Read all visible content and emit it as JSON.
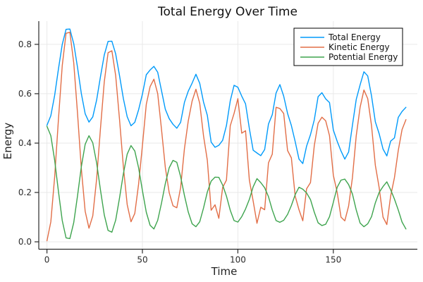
{
  "figure": {
    "background": "#ffffff",
    "axis_color": "#2b2b2b",
    "grid_color": "#e9e9e9",
    "tick_label_color": "#2b2b2b"
  },
  "chart_data": {
    "type": "line",
    "title": "Total Energy Over Time",
    "xlabel": "Time",
    "ylabel": "Energy",
    "xlim": [
      -4.3,
      194
    ],
    "ylim": [
      -0.03,
      0.894
    ],
    "grid": true,
    "legend_position": "top-right",
    "legend_border_color": "#000000",
    "legend_background": "#ffffff",
    "xtick_values": [
      0,
      50,
      100,
      150
    ],
    "xtick_labels": [
      "0",
      "50",
      "100",
      "150"
    ],
    "ytick_values": [
      0.0,
      0.2,
      0.4,
      0.6,
      0.8
    ],
    "ytick_labels": [
      "0.0",
      "0.2",
      "0.4",
      "0.6",
      "0.8"
    ],
    "x": [
      0,
      2,
      4,
      6,
      8,
      10,
      12,
      14,
      16,
      18,
      20,
      22,
      24,
      26,
      28,
      30,
      32,
      34,
      36,
      38,
      40,
      42,
      44,
      46,
      48,
      50,
      52,
      54,
      56,
      58,
      60,
      62,
      64,
      66,
      68,
      70,
      72,
      74,
      76,
      78,
      80,
      82,
      84,
      86,
      88,
      90,
      92,
      94,
      96,
      98,
      100,
      102,
      104,
      106,
      108,
      110,
      112,
      114,
      116,
      118,
      120,
      122,
      124,
      126,
      128,
      130,
      132,
      134,
      136,
      138,
      140,
      142,
      144,
      146,
      148,
      150,
      152,
      154,
      156,
      158,
      160,
      162,
      164,
      166,
      168,
      170,
      172,
      174,
      176,
      178,
      180,
      182,
      184,
      186,
      188
    ],
    "series": [
      {
        "name": "Total Energy",
        "color": "#009AFA",
        "values": [
          0.472,
          0.511,
          0.593,
          0.7,
          0.8,
          0.861,
          0.862,
          0.803,
          0.706,
          0.6,
          0.519,
          0.485,
          0.506,
          0.575,
          0.669,
          0.757,
          0.812,
          0.813,
          0.761,
          0.674,
          0.58,
          0.507,
          0.47,
          0.484,
          0.535,
          0.598,
          0.677,
          0.696,
          0.711,
          0.687,
          0.612,
          0.537,
          0.499,
          0.476,
          0.46,
          0.484,
          0.565,
          0.61,
          0.643,
          0.679,
          0.642,
          0.566,
          0.512,
          0.404,
          0.383,
          0.391,
          0.411,
          0.471,
          0.571,
          0.634,
          0.626,
          0.59,
          0.559,
          0.459,
          0.371,
          0.36,
          0.349,
          0.374,
          0.477,
          0.515,
          0.603,
          0.637,
          0.59,
          0.52,
          0.471,
          0.406,
          0.335,
          0.317,
          0.388,
          0.434,
          0.494,
          0.588,
          0.604,
          0.579,
          0.564,
          0.453,
          0.407,
          0.368,
          0.335,
          0.364,
          0.472,
          0.577,
          0.636,
          0.689,
          0.672,
          0.591,
          0.486,
          0.438,
          0.376,
          0.348,
          0.408,
          0.421,
          0.504,
          0.528,
          0.545
        ]
      },
      {
        "name": "Kinetic Energy",
        "color": "#E26E47",
        "values": [
          0.004,
          0.081,
          0.262,
          0.496,
          0.714,
          0.845,
          0.849,
          0.725,
          0.519,
          0.295,
          0.124,
          0.055,
          0.105,
          0.256,
          0.459,
          0.648,
          0.766,
          0.774,
          0.673,
          0.497,
          0.304,
          0.151,
          0.081,
          0.115,
          0.234,
          0.39,
          0.557,
          0.629,
          0.659,
          0.6,
          0.455,
          0.301,
          0.199,
          0.146,
          0.138,
          0.22,
          0.377,
          0.489,
          0.57,
          0.618,
          0.561,
          0.429,
          0.33,
          0.128,
          0.15,
          0.095,
          0.22,
          0.25,
          0.47,
          0.52,
          0.58,
          0.44,
          0.45,
          0.25,
          0.165,
          0.075,
          0.14,
          0.13,
          0.32,
          0.355,
          0.545,
          0.54,
          0.52,
          0.37,
          0.34,
          0.185,
          0.13,
          0.085,
          0.215,
          0.24,
          0.39,
          0.48,
          0.505,
          0.49,
          0.43,
          0.27,
          0.2,
          0.1,
          0.085,
          0.145,
          0.26,
          0.43,
          0.545,
          0.615,
          0.58,
          0.47,
          0.31,
          0.22,
          0.1,
          0.07,
          0.185,
          0.26,
          0.37,
          0.455,
          0.495
        ]
      },
      {
        "name": "Potential Energy",
        "color": "#3EA44E",
        "values": [
          0.468,
          0.43,
          0.331,
          0.204,
          0.086,
          0.016,
          0.013,
          0.078,
          0.187,
          0.305,
          0.395,
          0.43,
          0.401,
          0.319,
          0.21,
          0.109,
          0.046,
          0.039,
          0.088,
          0.177,
          0.276,
          0.355,
          0.39,
          0.368,
          0.3,
          0.208,
          0.12,
          0.067,
          0.052,
          0.087,
          0.157,
          0.236,
          0.3,
          0.33,
          0.322,
          0.264,
          0.188,
          0.121,
          0.073,
          0.061,
          0.081,
          0.137,
          0.202,
          0.246,
          0.262,
          0.261,
          0.23,
          0.185,
          0.128,
          0.086,
          0.08,
          0.102,
          0.133,
          0.172,
          0.223,
          0.256,
          0.24,
          0.219,
          0.183,
          0.129,
          0.086,
          0.079,
          0.087,
          0.111,
          0.147,
          0.191,
          0.221,
          0.213,
          0.198,
          0.171,
          0.12,
          0.077,
          0.066,
          0.071,
          0.102,
          0.16,
          0.221,
          0.25,
          0.254,
          0.232,
          0.194,
          0.129,
          0.076,
          0.061,
          0.073,
          0.102,
          0.158,
          0.2,
          0.224,
          0.243,
          0.211,
          0.173,
          0.129,
          0.08,
          0.052
        ]
      }
    ]
  }
}
